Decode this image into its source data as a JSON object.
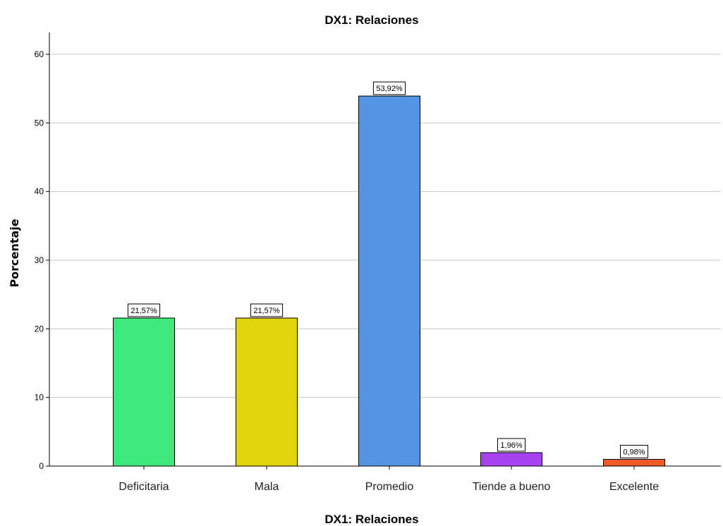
{
  "chart_data": {
    "type": "bar",
    "title": "DX1: Relaciones",
    "xlabel": "DX1: Relaciones",
    "ylabel": "Porcentaje",
    "categories": [
      "Deficitaria",
      "Mala",
      "Promedio",
      "Tiende a bueno",
      "Excelente"
    ],
    "values": [
      21.57,
      21.57,
      53.92,
      1.96,
      0.98
    ],
    "data_labels": [
      "21,57%",
      "21,57%",
      "53,92%",
      "1,96%",
      "0,98%"
    ],
    "colors": [
      "#3fe87a",
      "#e2d30f",
      "#5495e3",
      "#a742f0",
      "#ef5a25"
    ],
    "ylim": [
      0,
      60
    ],
    "yticks": [
      0,
      10,
      20,
      30,
      40,
      50,
      60
    ],
    "grid": true,
    "legend": "none"
  }
}
